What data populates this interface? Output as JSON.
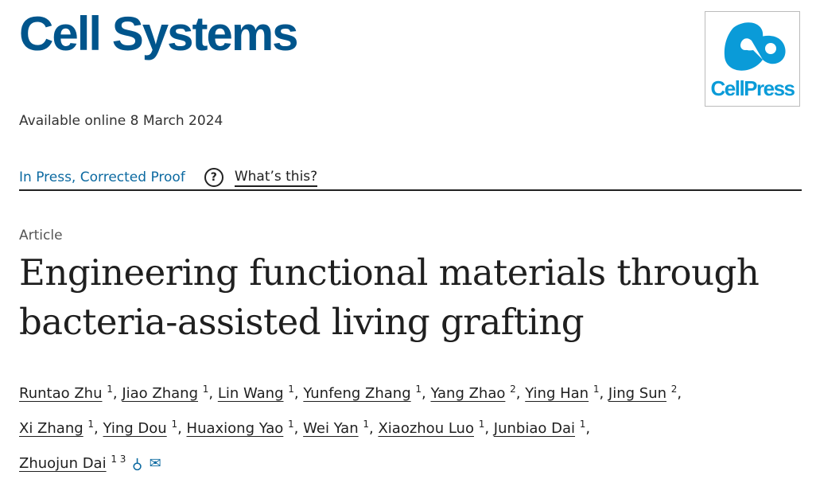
{
  "journal": "Cell Systems",
  "publisher_logo": "CellPress",
  "brand_color": "#00558c",
  "available": "Available online 8 March 2024",
  "status": {
    "label": "In Press, Corrected Proof",
    "help_icon": "question-circle-icon",
    "help_text": "?",
    "whats_this": "What’s this?"
  },
  "article_type": "Article",
  "title_lines": [
    "Engineering functional materials through",
    "bacteria-assisted living grafting"
  ],
  "authors": [
    {
      "name": "Runtao Zhu",
      "aff": "1"
    },
    {
      "name": "Jiao Zhang",
      "aff": "1"
    },
    {
      "name": "Lin Wang",
      "aff": "1"
    },
    {
      "name": "Yunfeng Zhang",
      "aff": "1"
    },
    {
      "name": "Yang Zhao",
      "aff": "2"
    },
    {
      "name": "Ying Han",
      "aff": "1"
    },
    {
      "name": "Jing Sun",
      "aff": "2"
    },
    {
      "name": "Xi Zhang",
      "aff": "1"
    },
    {
      "name": "Ying Dou",
      "aff": "1"
    },
    {
      "name": "Huaxiong Yao",
      "aff": "1"
    },
    {
      "name": "Wei Yan",
      "aff": "1"
    },
    {
      "name": "Xiaozhou Luo",
      "aff": "1"
    },
    {
      "name": "Junbiao Dai",
      "aff": "1"
    },
    {
      "name": "Zhuojun Dai",
      "aff": "1 3"
    }
  ],
  "author_icons": [
    "person-icon",
    "envelope-icon"
  ]
}
